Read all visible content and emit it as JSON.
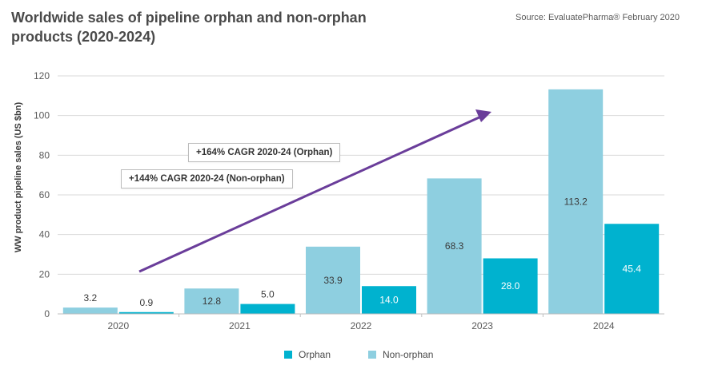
{
  "header": {
    "title": "Worldwide sales of pipeline orphan and non-orphan products (2020-2024)",
    "source": "Source: EvaluatePharma® February 2020"
  },
  "annotations": {
    "cagr_orphan": "+164% CAGR 2020-24 (Orphan)",
    "cagr_nonorphan": "+144% CAGR 2020-24 (Non-orphan)"
  },
  "colors": {
    "orphan": "#00b2cf",
    "nonorphan": "#8ecfe0",
    "arrow": "#6a3d9a",
    "grid": "#d9d9d9"
  },
  "chart_data": {
    "type": "bar",
    "title": "Worldwide sales of pipeline orphan and non-orphan products (2020-2024)",
    "xlabel": "",
    "ylabel": "WW product pipeline sales (US $bn)",
    "ylim": [
      0,
      120
    ],
    "yticks": [
      0,
      20,
      40,
      60,
      80,
      100,
      120
    ],
    "categories": [
      "2020",
      "2021",
      "2022",
      "2023",
      "2024"
    ],
    "series": [
      {
        "name": "Non-orphan",
        "values": [
          3.2,
          12.8,
          33.9,
          68.3,
          113.2
        ],
        "labels": [
          "3.2",
          "12.8",
          "33.9",
          "68.3",
          "113.2"
        ]
      },
      {
        "name": "Orphan",
        "values": [
          0.9,
          5.0,
          14.0,
          28.0,
          45.4
        ],
        "labels": [
          "0.9",
          "5.0",
          "14.0",
          "28.0",
          "45.4"
        ]
      }
    ],
    "legend": {
      "position": "bottom",
      "entries": [
        "Orphan",
        "Non-orphan"
      ]
    }
  }
}
